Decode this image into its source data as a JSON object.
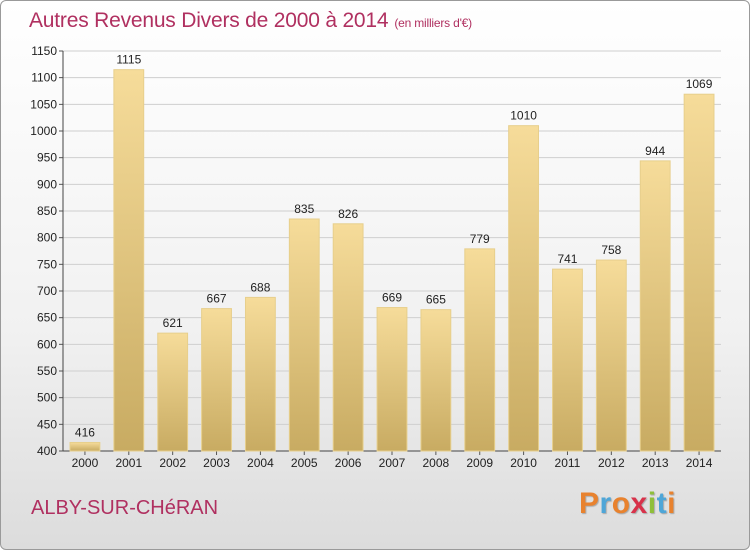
{
  "header": {
    "title": "Autres Revenus Divers de 2000 à 2014",
    "unit": "(en milliers d'€)"
  },
  "footer": {
    "town": "ALBY-SUR-CHéRAN",
    "logo": "Proxiti"
  },
  "colors": {
    "title": "#b03060",
    "bar_top": "#f6dc9a",
    "bar_bottom": "#c8ab62",
    "grid": "#cfcfcf",
    "logo_letters": [
      "#e8822e",
      "#4ea6d8",
      "#e8822e",
      "#d8324a",
      "#8fbf3a",
      "#4ea6d8",
      "#e8822e"
    ]
  },
  "chart_data": {
    "type": "bar",
    "categories": [
      "2000",
      "2001",
      "2002",
      "2003",
      "2004",
      "2005",
      "2006",
      "2007",
      "2008",
      "2009",
      "2010",
      "2011",
      "2012",
      "2013",
      "2014"
    ],
    "values": [
      416,
      1115,
      621,
      667,
      688,
      835,
      826,
      669,
      665,
      779,
      1010,
      741,
      758,
      944,
      1069
    ],
    "ylim": [
      400,
      1150
    ],
    "yticks": [
      400,
      450,
      500,
      550,
      600,
      650,
      700,
      750,
      800,
      850,
      900,
      950,
      1000,
      1050,
      1100,
      1150
    ],
    "grid": true
  }
}
